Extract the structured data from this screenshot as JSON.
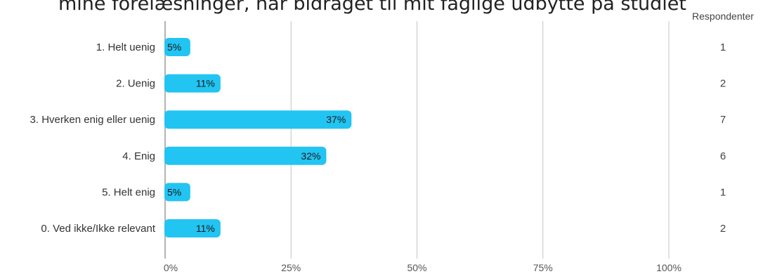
{
  "chart_data": {
    "type": "bar",
    "orientation": "horizontal",
    "title": "mine forelæsninger, har bidraget til mit faglige udbytte på studiet",
    "categories": [
      "1. Helt uenig",
      "2. Uenig",
      "3. Hverken enig eller uenig",
      "4. Enig",
      "5. Helt enig",
      "0. Ved ikke/Ikke relevant"
    ],
    "values": [
      5,
      11,
      37,
      32,
      5,
      11
    ],
    "data_labels": [
      "5%",
      "11%",
      "37%",
      "32%",
      "5%",
      "11%"
    ],
    "respondents_header": "Respondenter",
    "respondents": [
      "1",
      "2",
      "7",
      "6",
      "1",
      "2"
    ],
    "xlim": [
      0,
      100
    ],
    "x_ticks": [
      0,
      25,
      50,
      75,
      100
    ],
    "x_tick_labels": [
      "0%",
      "25%",
      "50%",
      "75%",
      "100%"
    ],
    "grid": true,
    "bar_color": "#22c4f2"
  }
}
